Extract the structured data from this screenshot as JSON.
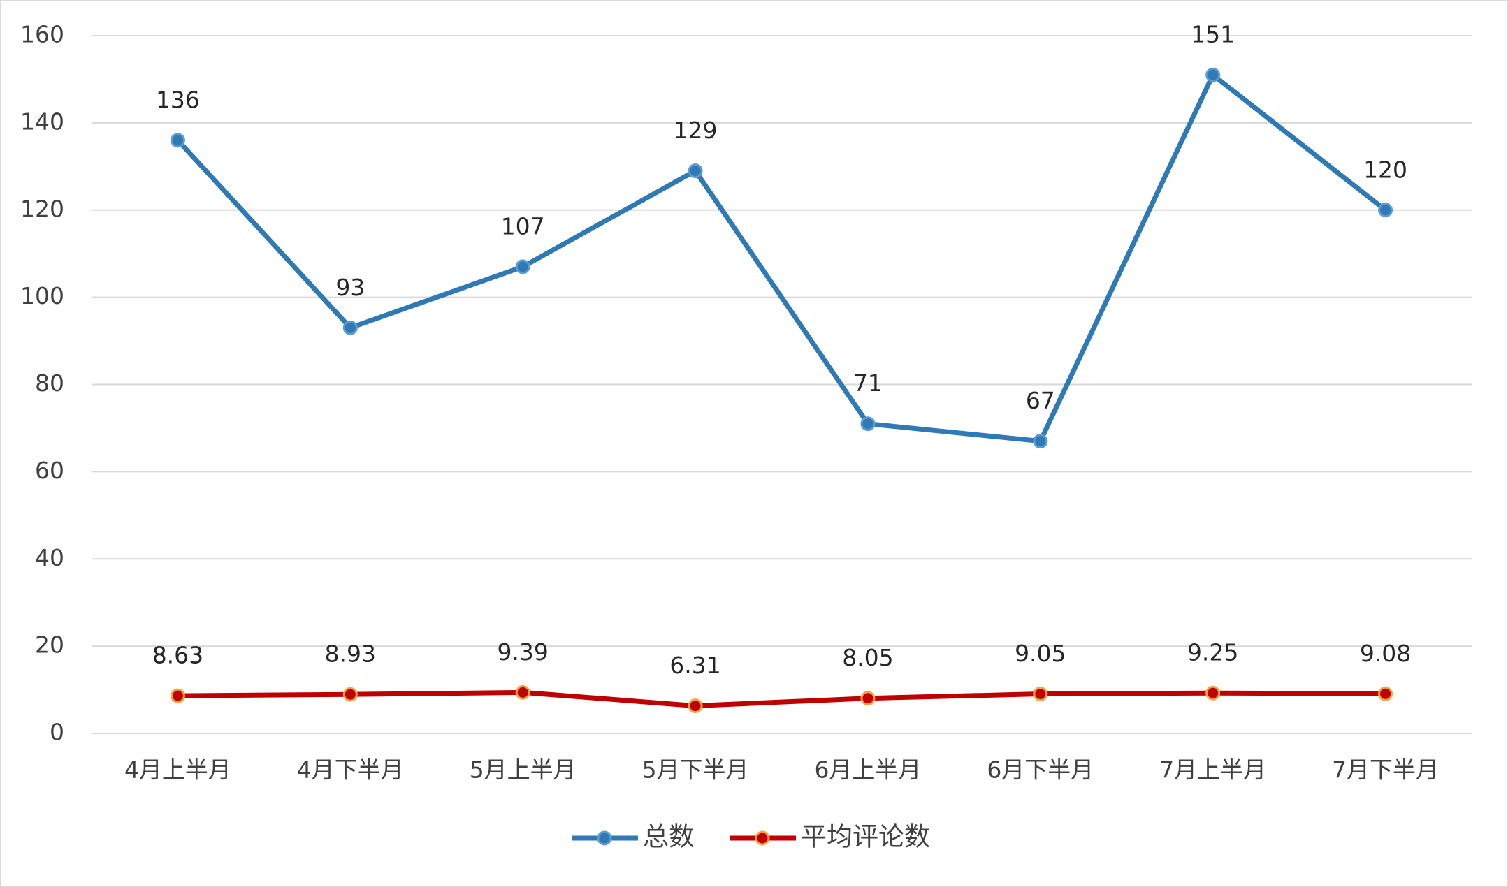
{
  "chart_data": {
    "type": "line",
    "categories": [
      "4月上半月",
      "4月下半月",
      "5月上半月",
      "5月下半月",
      "6月上半月",
      "6月下半月",
      "7月上半月",
      "7月下半月"
    ],
    "series": [
      {
        "name": "总数",
        "color": "#2f7ab5",
        "values": [
          136,
          93,
          107,
          129,
          71,
          67,
          151,
          120
        ]
      },
      {
        "name": "平均评论数",
        "color": "#c00000",
        "values": [
          8.63,
          8.93,
          9.39,
          6.31,
          8.05,
          9.05,
          9.25,
          9.08
        ]
      }
    ],
    "ylim": [
      0,
      160
    ],
    "yticks": [
      0,
      20,
      40,
      60,
      80,
      100,
      120,
      140,
      160
    ],
    "grid": true,
    "legend": "bottom"
  }
}
